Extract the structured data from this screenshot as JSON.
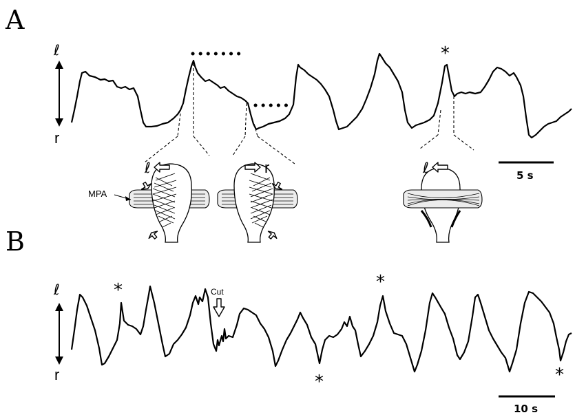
{
  "panels": {
    "a": {
      "letter": "A",
      "axis_top": "ℓ",
      "axis_bottom": "r",
      "star": "*",
      "scale_bar": "5 s",
      "diagram": {
        "label_mpa": "MPA",
        "left_arrow_label": "ℓ",
        "right_arrow_label": "r",
        "third_arrow_label": "ℓ"
      }
    },
    "b": {
      "letter": "B",
      "axis_top": "ℓ",
      "axis_bottom": "r",
      "stars": [
        "*",
        "*",
        "*",
        "*"
      ],
      "cut_label": "Cut",
      "scale_bar": "10 s"
    }
  }
}
